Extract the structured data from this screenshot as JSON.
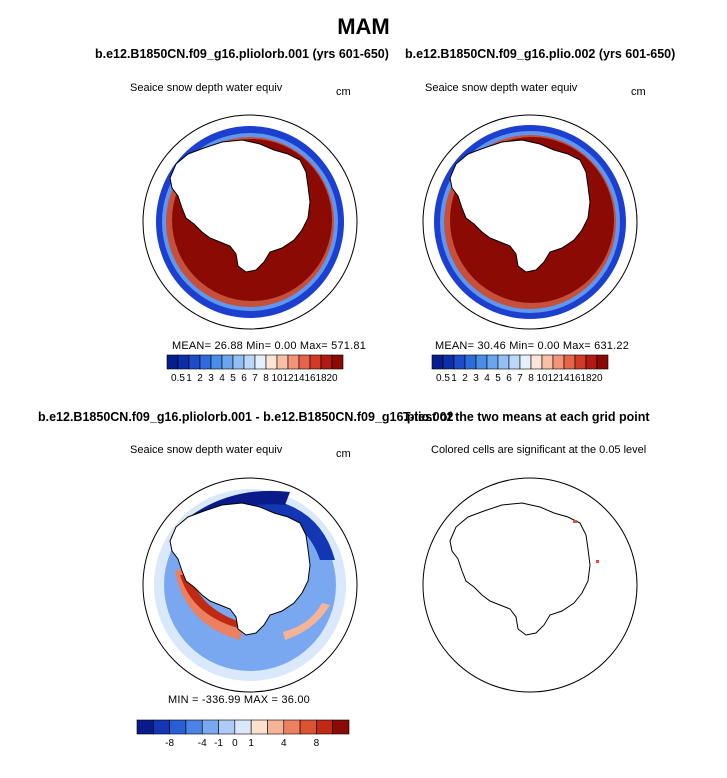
{
  "season": "MAM",
  "panels": [
    {
      "title": "b.e12.B1850CN.f09_g16.pliolorb.001 (yrs 601-650)",
      "left_label": "Seaice snow depth water equiv",
      "right_label": "cm",
      "stats": "MEAN=   26.88   Min=    0.00   Max= 571.81"
    },
    {
      "title": "b.e12.B1850CN.f09_g16.plio.002 (yrs 601-650)",
      "left_label": "Seaice snow depth water equiv",
      "right_label": "cm",
      "stats": "MEAN=   30.46   Min=    0.00   Max= 631.22"
    },
    {
      "title": "b.e12.B1850CN.f09_g16.pliolorb.001 - b.e12.B1850CN.f09_g16.plio.002",
      "left_label": "Seaice snow depth water equiv",
      "right_label": "cm",
      "stats": "MIN = -336.99  MAX =   36.00"
    },
    {
      "title": "T-test of the two means at each grid point",
      "left_label": "Colored cells are significant at the 0.05 level"
    }
  ],
  "colorbar_abs": {
    "labels": [
      "0.5",
      "1",
      "2",
      "3",
      "4",
      "5",
      "6",
      "7",
      "8",
      "10",
      "12",
      "14",
      "16",
      "18",
      "20"
    ],
    "colors": [
      "#081d8c",
      "#0c2ea8",
      "#1c4cc8",
      "#2e6cdc",
      "#4a8ce6",
      "#6aa6ee",
      "#92c0f4",
      "#bcd8f8",
      "#e6f0fc",
      "#fde4d6",
      "#f9c0a6",
      "#f29478",
      "#e6644a",
      "#d03a26",
      "#b01a10",
      "#8c0a04"
    ]
  },
  "colorbar_diff": {
    "labels": [
      "-8",
      "-4",
      "-1",
      "0",
      "1",
      "4",
      "8"
    ],
    "colors": [
      "#0a1a8a",
      "#1236b4",
      "#2a5ed6",
      "#4c84e6",
      "#7aa8f0",
      "#aecaf6",
      "#dae8fb",
      "#fce0d0",
      "#f6b496",
      "#ec8060",
      "#dc5234",
      "#c02a14",
      "#8c0a04"
    ]
  }
}
